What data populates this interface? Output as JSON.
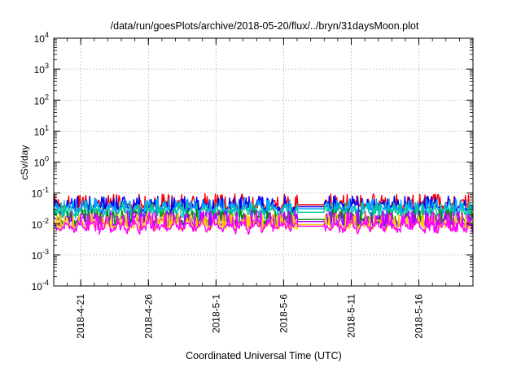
{
  "chart_data": {
    "type": "line",
    "title": "/data/run/goesPlots/archive/2018-05-20/flux/../bryn/31daysMoon.plot",
    "xlabel": "Coordinated Universal Time (UTC)",
    "ylabel": "cSv/day",
    "y_scale": "log",
    "ylim": [
      0.0001,
      10000
    ],
    "y_ticks": [
      {
        "value": 0.0001,
        "mantissa": "10",
        "exp": "-4"
      },
      {
        "value": 0.001,
        "mantissa": "10",
        "exp": "-3"
      },
      {
        "value": 0.01,
        "mantissa": "10",
        "exp": "-2"
      },
      {
        "value": 0.1,
        "mantissa": "10",
        "exp": "-1"
      },
      {
        "value": 1,
        "mantissa": "10",
        "exp": "0"
      },
      {
        "value": 10,
        "mantissa": "10",
        "exp": "1"
      },
      {
        "value": 100,
        "mantissa": "10",
        "exp": "2"
      },
      {
        "value": 1000,
        "mantissa": "10",
        "exp": "3"
      },
      {
        "value": 10000,
        "mantissa": "10",
        "exp": "4"
      }
    ],
    "xlim": [
      "2018-04-19",
      "2018-05-20"
    ],
    "x_ticks": [
      "2018-4-21",
      "2018-4-26",
      "2018-5-1",
      "2018-5-6",
      "2018-5-11",
      "2018-5-16"
    ],
    "x_tick_dates": [
      "2018-04-21",
      "2018-04-26",
      "2018-05-01",
      "2018-05-06",
      "2018-05-11",
      "2018-05-16"
    ],
    "grid": true,
    "data_gap": [
      "2018-05-07",
      "2018-05-09"
    ],
    "series": [
      {
        "color": "#ff0000",
        "base": 0.042,
        "spike": 0.095,
        "floor": 0.03
      },
      {
        "color": "#0000ff",
        "base": 0.036,
        "spike": 0.08,
        "floor": 0.026
      },
      {
        "color": "#00aaff",
        "base": 0.031,
        "spike": 0.065,
        "floor": 0.022
      },
      {
        "color": "#00c8a0",
        "base": 0.024,
        "spike": 0.05,
        "floor": 0.016
      },
      {
        "color": "#008800",
        "base": 0.014,
        "spike": 0.03,
        "floor": 0.009
      },
      {
        "color": "#aa00ff",
        "base": 0.012,
        "spike": 0.027,
        "floor": 0.0075
      },
      {
        "color": "#ffcc00",
        "base": 0.0095,
        "spike": 0.022,
        "floor": 0.0065
      },
      {
        "color": "#ff00ff",
        "base": 0.0085,
        "spike": 0.025,
        "floor": 0.0052
      }
    ]
  }
}
